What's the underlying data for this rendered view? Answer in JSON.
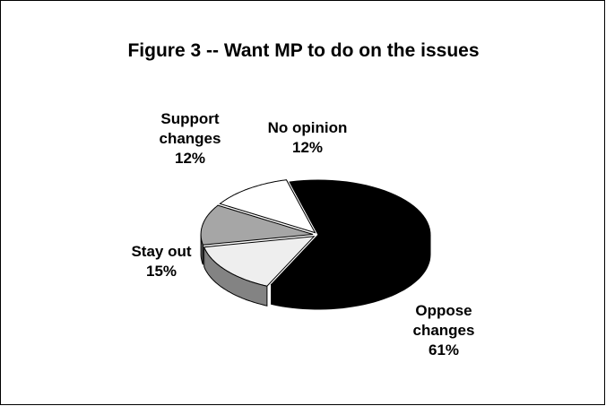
{
  "chart_data": {
    "type": "pie",
    "title": "Figure 3 -- Want MP to do on the issues",
    "categories": [
      "No opinion",
      "Oppose changes",
      "Stay out",
      "Support changes"
    ],
    "values": [
      12,
      61,
      15,
      12
    ],
    "value_labels": [
      "12%",
      "61%",
      "15%",
      "12%"
    ],
    "label_lines": [
      [
        "No opinion",
        "12%"
      ],
      [
        "Oppose",
        "changes",
        "61%"
      ],
      [
        "Stay out",
        "15%"
      ],
      [
        "Support",
        "changes",
        "12%"
      ]
    ],
    "colors": [
      "#ffffff",
      "#000000",
      "#eeeeee",
      "#a6a6a6"
    ],
    "style": "3d-exploded",
    "legend": "none"
  }
}
